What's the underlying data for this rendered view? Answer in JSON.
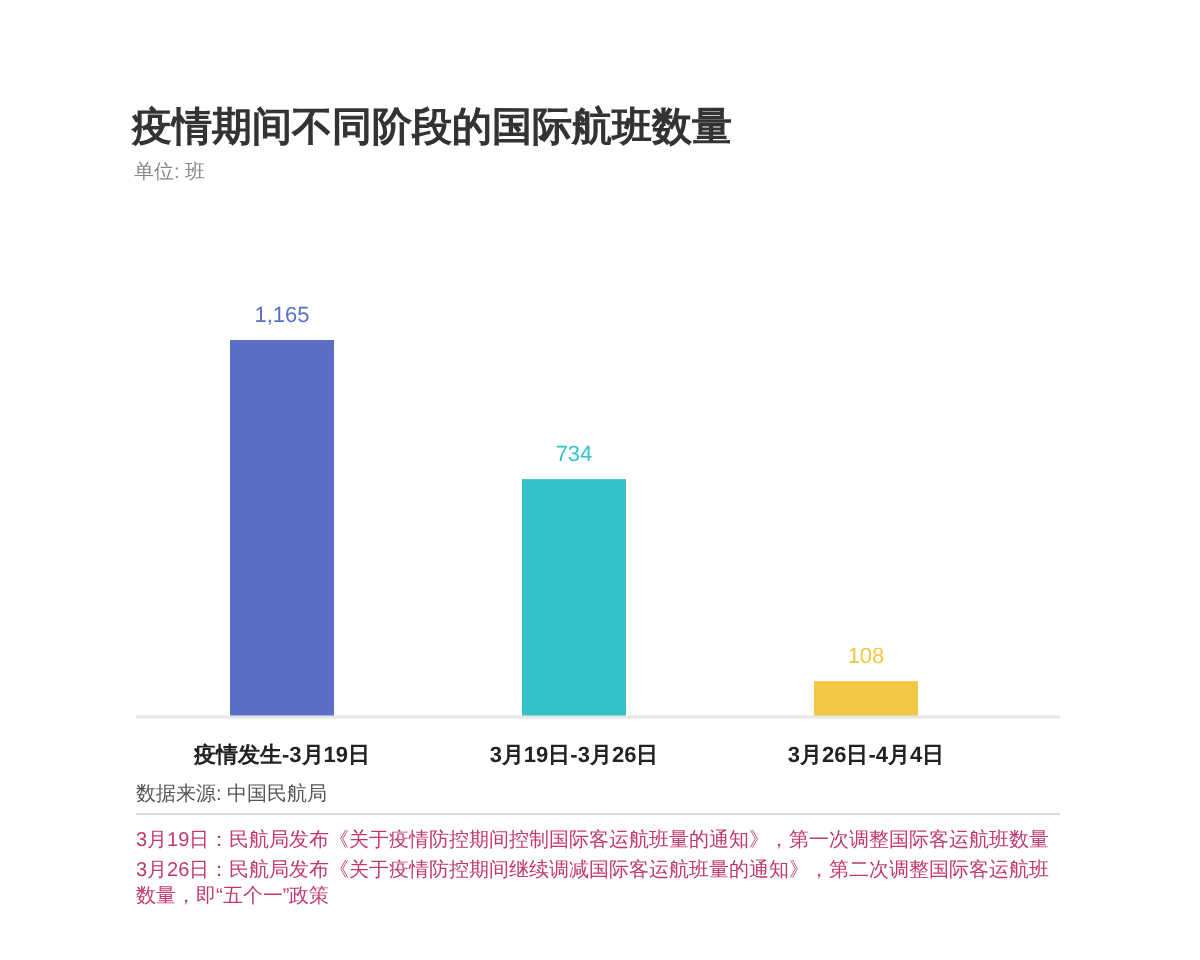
{
  "chart_data": {
    "type": "bar",
    "title": "疫情期间不同阶段的国际航班数量",
    "subtitle": "单位: 班",
    "categories": [
      "疫情发生-3月19日",
      "3月19日-3月26日",
      "3月26日-4月4日"
    ],
    "values": [
      1165,
      734,
      108
    ],
    "colors": [
      "#5b6fc6",
      "#33c2c9",
      "#f0c843"
    ],
    "value_labels": [
      "1,165",
      "734",
      "108"
    ],
    "annotations": [
      "数据来源: 中国民航局",
      "3月19日：民航局发布《关于疫情防控期间控制国际客运航班量的通知》，第一次调整国际客运航班数量",
      "3月26日：民航局发布《关于疫情防控期间继续调减国际客运航班量的通知》，第二次调整国际客运航班数量，即“五个一”政策"
    ]
  }
}
